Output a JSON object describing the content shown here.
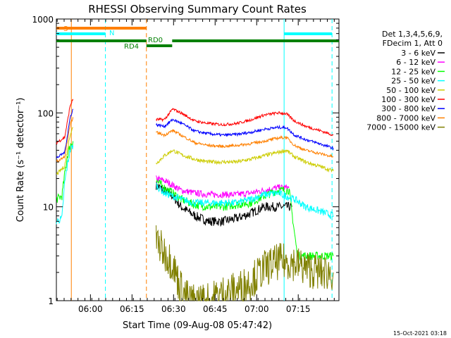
{
  "chart_data": {
    "type": "line",
    "title": "RHESSI Observing Summary Count Rates",
    "xlabel": "Start Time (09-Aug-08 05:47:42)",
    "ylabel": "Count Rate (s⁻¹ detector⁻¹)",
    "yscale": "log",
    "ylim": [
      1,
      1000
    ],
    "xlim_minutes_after_start": [
      0,
      102
    ],
    "x_ticks": [
      {
        "label": "06:00",
        "minutes": 12.3
      },
      {
        "label": "06:15",
        "minutes": 27.3
      },
      {
        "label": "06:30",
        "minutes": 42.3
      },
      {
        "label": "06:45",
        "minutes": 57.3
      },
      {
        "label": "07:00",
        "minutes": 72.3
      },
      {
        "label": "07:15",
        "minutes": 87.3
      }
    ],
    "y_ticks": [
      {
        "label": "1",
        "value": 1
      },
      {
        "label": "10",
        "value": 10
      },
      {
        "label": "100",
        "value": 100
      },
      {
        "label": "1000",
        "value": 1000
      }
    ],
    "legend": {
      "placement": "right",
      "header": [
        "Det 1,3,4,5,6,9,",
        "FDecim 1, Att 0"
      ]
    },
    "flags": [
      {
        "label": "S",
        "color": "#ff8000",
        "segments": [
          [
            0,
            32.5
          ]
        ]
      },
      {
        "label": "N",
        "color": "#00ffff",
        "segments": [
          [
            0,
            17.7
          ],
          [
            82.2,
            99.5
          ]
        ]
      },
      {
        "label": "RD4",
        "color": "#008000",
        "segments": [
          [
            0,
            32.5
          ]
        ]
      },
      {
        "label": "RD0",
        "color": "#008000",
        "segments": [
          [
            32.5,
            41.8
          ],
          [
            41.8,
            102
          ]
        ]
      }
    ],
    "vertical_markers": [
      {
        "minutes": 5.4,
        "color": "#ff8000",
        "style": "solid"
      },
      {
        "minutes": 17.7,
        "color": "#00ffff",
        "style": "dashed"
      },
      {
        "minutes": 32.5,
        "color": "#ff8000",
        "style": "dashed"
      },
      {
        "minutes": 82.2,
        "color": "#00ffff",
        "style": "solid"
      },
      {
        "minutes": 99.5,
        "color": "#00ffff",
        "style": "dashed"
      }
    ],
    "series": [
      {
        "name": "3 - 6 keV",
        "color": "#000000",
        "noise": 0.05,
        "points": [
          [
            36,
            17
          ],
          [
            39,
            15
          ],
          [
            42,
            13
          ],
          [
            45,
            10
          ],
          [
            50,
            8
          ],
          [
            55,
            7
          ],
          [
            60,
            7
          ],
          [
            65,
            7.5
          ],
          [
            70,
            8.5
          ],
          [
            75,
            10
          ],
          [
            80,
            10
          ],
          [
            85,
            10
          ]
        ]
      },
      {
        "name": "6 - 12 keV",
        "color": "#ff00ff",
        "noise": 0.035,
        "points": [
          [
            36,
            20
          ],
          [
            39,
            19
          ],
          [
            42,
            17
          ],
          [
            45,
            15
          ],
          [
            50,
            14
          ],
          [
            55,
            13.5
          ],
          [
            60,
            13.5
          ],
          [
            65,
            13.5
          ],
          [
            70,
            14
          ],
          [
            75,
            15
          ],
          [
            80,
            16
          ],
          [
            84,
            16
          ]
        ]
      },
      {
        "name": "12 - 25 keV",
        "color": "#00ff00",
        "noise": 0.045,
        "points": [
          [
            0,
            12
          ],
          [
            2,
            13
          ],
          [
            3,
            22
          ],
          [
            4,
            35
          ],
          [
            5,
            45
          ],
          [
            6,
            50
          ],
          [
            36,
            19
          ],
          [
            39,
            16
          ],
          [
            42,
            14
          ],
          [
            45,
            12
          ],
          [
            50,
            10.5
          ],
          [
            55,
            10
          ],
          [
            60,
            10
          ],
          [
            65,
            10.5
          ],
          [
            70,
            11
          ],
          [
            75,
            13
          ],
          [
            80,
            15
          ],
          [
            84,
            15
          ],
          [
            87,
            3
          ],
          [
            92,
            3
          ],
          [
            100,
            3
          ]
        ]
      },
      {
        "name": "25 - 50 keV",
        "color": "#00ffff",
        "noise": 0.04,
        "points": [
          [
            0,
            7
          ],
          [
            2,
            7.5
          ],
          [
            3,
            18
          ],
          [
            4,
            28
          ],
          [
            5,
            40
          ],
          [
            6,
            45
          ],
          [
            36,
            17
          ],
          [
            39,
            14
          ],
          [
            42,
            13
          ],
          [
            45,
            12
          ],
          [
            50,
            11
          ],
          [
            55,
            11
          ],
          [
            60,
            11
          ],
          [
            65,
            11
          ],
          [
            70,
            12
          ],
          [
            75,
            13.5
          ],
          [
            80,
            14
          ],
          [
            83,
            13
          ],
          [
            86,
            12
          ],
          [
            90,
            10
          ],
          [
            95,
            9
          ],
          [
            100,
            8
          ]
        ]
      },
      {
        "name": "50 - 100 keV",
        "color": "#cccc00",
        "noise": 0.02,
        "points": [
          [
            0,
            22
          ],
          [
            3,
            27
          ],
          [
            5,
            60
          ],
          [
            6,
            70
          ],
          [
            36,
            29
          ],
          [
            39,
            35
          ],
          [
            42,
            40
          ],
          [
            45,
            36
          ],
          [
            50,
            32
          ],
          [
            55,
            30
          ],
          [
            60,
            30
          ],
          [
            65,
            30
          ],
          [
            70,
            32
          ],
          [
            75,
            35
          ],
          [
            80,
            38
          ],
          [
            83,
            40
          ],
          [
            86,
            34
          ],
          [
            90,
            30
          ],
          [
            95,
            27
          ],
          [
            100,
            24
          ]
        ]
      },
      {
        "name": "100 - 300 keV",
        "color": "#ff0000",
        "noise": 0.015,
        "points": [
          [
            0,
            48
          ],
          [
            3,
            55
          ],
          [
            5,
            120
          ],
          [
            6,
            140
          ],
          [
            36,
            85
          ],
          [
            39,
            85
          ],
          [
            42,
            110
          ],
          [
            45,
            100
          ],
          [
            50,
            82
          ],
          [
            55,
            77
          ],
          [
            60,
            75
          ],
          [
            65,
            77
          ],
          [
            70,
            84
          ],
          [
            75,
            95
          ],
          [
            80,
            100
          ],
          [
            83,
            98
          ],
          [
            86,
            82
          ],
          [
            90,
            72
          ],
          [
            95,
            65
          ],
          [
            100,
            58
          ]
        ]
      },
      {
        "name": "300 - 800 keV",
        "color": "#0000ff",
        "noise": 0.015,
        "points": [
          [
            0,
            33
          ],
          [
            3,
            38
          ],
          [
            5,
            90
          ],
          [
            6,
            110
          ],
          [
            36,
            75
          ],
          [
            39,
            72
          ],
          [
            42,
            85
          ],
          [
            45,
            78
          ],
          [
            50,
            64
          ],
          [
            55,
            60
          ],
          [
            60,
            58
          ],
          [
            65,
            59
          ],
          [
            70,
            62
          ],
          [
            75,
            67
          ],
          [
            80,
            70
          ],
          [
            83,
            70
          ],
          [
            86,
            58
          ],
          [
            90,
            52
          ],
          [
            95,
            47
          ],
          [
            100,
            42
          ]
        ]
      },
      {
        "name": "800 - 7000 keV",
        "color": "#ff8000",
        "noise": 0.015,
        "points": [
          [
            0,
            30
          ],
          [
            3,
            34
          ],
          [
            5,
            75
          ],
          [
            6,
            90
          ],
          [
            36,
            62
          ],
          [
            39,
            58
          ],
          [
            42,
            65
          ],
          [
            45,
            58
          ],
          [
            50,
            48
          ],
          [
            55,
            45
          ],
          [
            60,
            44
          ],
          [
            65,
            45
          ],
          [
            70,
            47
          ],
          [
            75,
            50
          ],
          [
            80,
            54
          ],
          [
            83,
            55
          ],
          [
            86,
            45
          ],
          [
            90,
            40
          ],
          [
            95,
            37
          ],
          [
            100,
            34
          ]
        ]
      },
      {
        "name": "7000 - 15000 keV",
        "color": "#808000",
        "noise": 0.2,
        "points": [
          [
            36,
            4.5
          ],
          [
            38,
            3.5
          ],
          [
            40,
            3
          ],
          [
            42,
            2.5
          ],
          [
            44,
            1.6
          ],
          [
            46,
            1.2
          ],
          [
            48,
            1.0
          ],
          [
            55,
            1.0
          ],
          [
            60,
            1.2
          ],
          [
            65,
            1.3
          ],
          [
            70,
            1.6
          ],
          [
            75,
            2.2
          ],
          [
            80,
            2.6
          ],
          [
            85,
            2.6
          ],
          [
            90,
            2.2
          ],
          [
            95,
            2.0
          ],
          [
            100,
            2.0
          ]
        ]
      }
    ]
  },
  "footer": {
    "timestamp": "15-Oct-2021 03:18"
  }
}
